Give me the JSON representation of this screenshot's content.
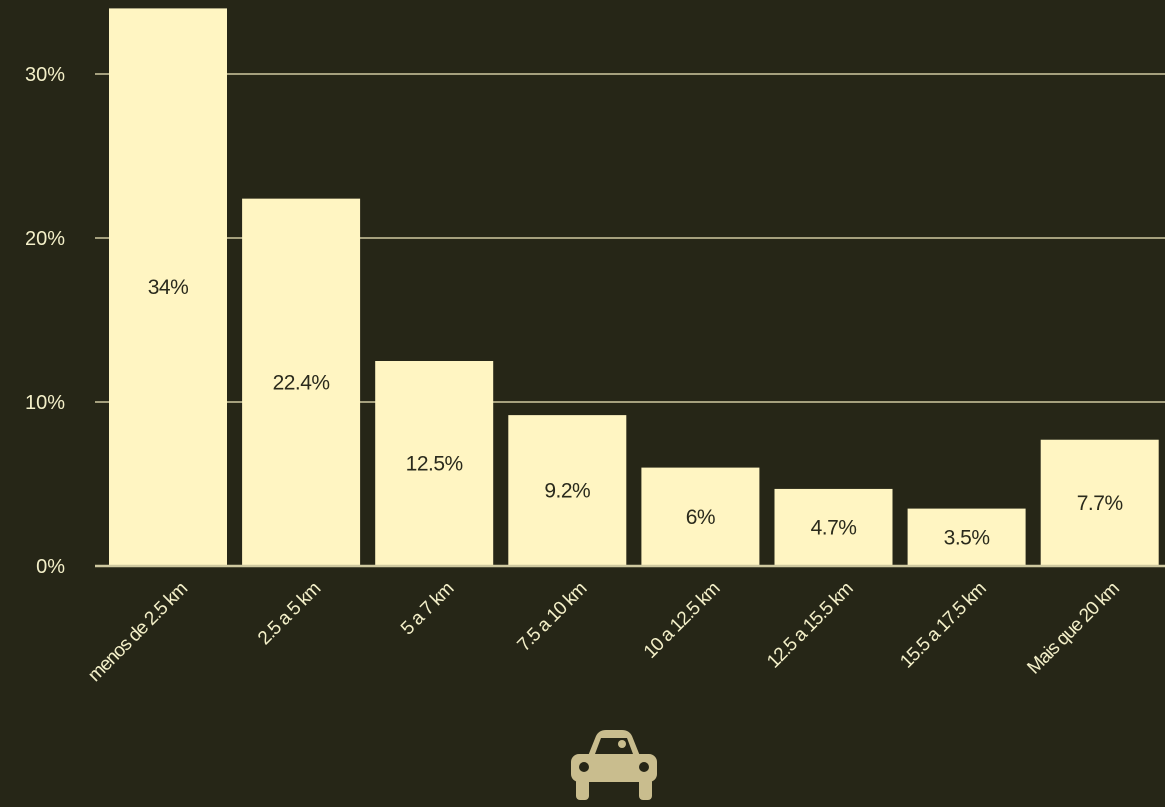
{
  "colors": {
    "background": "#262617",
    "bar": "#fff5c2",
    "grid": "#cfc9a0",
    "text": "#f3efc8",
    "icon": "#c9bd8e"
  },
  "icon": "car-icon",
  "chart_data": {
    "type": "bar",
    "categories": [
      "menos de 2.5 km",
      "2.5 a 5 km",
      "5 a 7 km",
      "7.5 a 10 km",
      "10 a 12.5 km",
      "12.5 a 15.5 km",
      "15.5 a 17.5 km",
      "Mais que 20 km"
    ],
    "values": [
      34,
      22.4,
      12.5,
      9.2,
      6,
      4.7,
      3.5,
      7.7
    ],
    "data_labels": [
      "34%",
      "22.4%",
      "12.5%",
      "9.2%",
      "6%",
      "4.7%",
      "3.5%",
      "7.7%"
    ],
    "yticks": [
      0,
      10,
      20,
      30
    ],
    "ytick_labels": [
      "0%",
      "10%",
      "20%",
      "30%"
    ],
    "ylim": [
      0,
      34
    ],
    "grid": true,
    "legend": "none"
  }
}
